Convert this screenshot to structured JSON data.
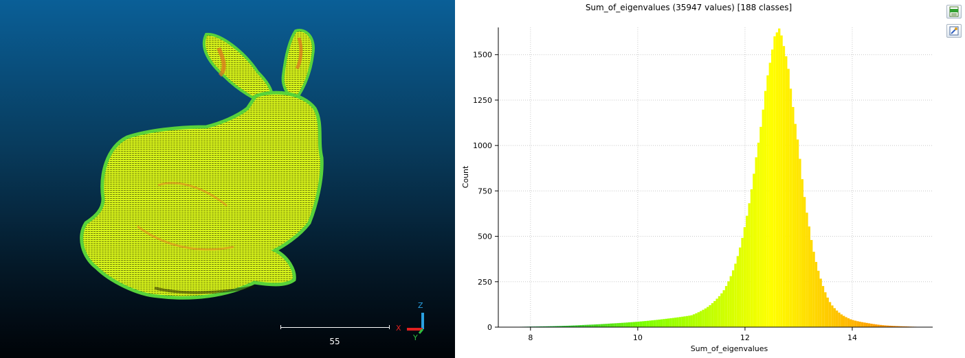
{
  "viewer": {
    "scale_label": "55",
    "axes": {
      "x": "X",
      "y": "Y",
      "z": "Z"
    }
  },
  "histogram": {
    "title": "Sum_of_eigenvalues (35947 values)  [188 classes]",
    "toolbar": {
      "export_csv_icon": "csv-export-icon",
      "export_image_icon": "image-export-icon"
    }
  },
  "chart_data": {
    "type": "bar",
    "title": "Sum_of_eigenvalues (35947 values)  [188 classes]",
    "xlabel": "Sum_of_eigenvalues",
    "ylabel": "Count",
    "xlim": [
      7.4,
      15.5
    ],
    "ylim": [
      0,
      1650
    ],
    "xticks": [
      8,
      10,
      12,
      14
    ],
    "yticks": [
      0,
      250,
      500,
      750,
      1000,
      1250,
      1500
    ],
    "grid": true,
    "bin_width": 0.043,
    "colormap": [
      "#00a050",
      "#7fff00",
      "#ffff00",
      "#ff8c00"
    ],
    "series": [
      {
        "values": [
          {
            "x": 7.5,
            "y": 1
          },
          {
            "x": 8.0,
            "y": 3
          },
          {
            "x": 8.5,
            "y": 6
          },
          {
            "x": 9.0,
            "y": 12
          },
          {
            "x": 9.5,
            "y": 20
          },
          {
            "x": 10.0,
            "y": 30
          },
          {
            "x": 10.5,
            "y": 45
          },
          {
            "x": 11.0,
            "y": 65
          },
          {
            "x": 11.3,
            "y": 110
          },
          {
            "x": 11.6,
            "y": 200
          },
          {
            "x": 11.8,
            "y": 330
          },
          {
            "x": 12.0,
            "y": 560
          },
          {
            "x": 12.2,
            "y": 920
          },
          {
            "x": 12.4,
            "y": 1350
          },
          {
            "x": 12.55,
            "y": 1600
          },
          {
            "x": 12.65,
            "y": 1650
          },
          {
            "x": 12.8,
            "y": 1450
          },
          {
            "x": 13.0,
            "y": 1000
          },
          {
            "x": 13.2,
            "y": 550
          },
          {
            "x": 13.4,
            "y": 280
          },
          {
            "x": 13.6,
            "y": 130
          },
          {
            "x": 13.8,
            "y": 70
          },
          {
            "x": 14.0,
            "y": 40
          },
          {
            "x": 14.3,
            "y": 22
          },
          {
            "x": 14.6,
            "y": 10
          },
          {
            "x": 15.0,
            "y": 4
          },
          {
            "x": 15.4,
            "y": 1
          }
        ]
      }
    ]
  }
}
